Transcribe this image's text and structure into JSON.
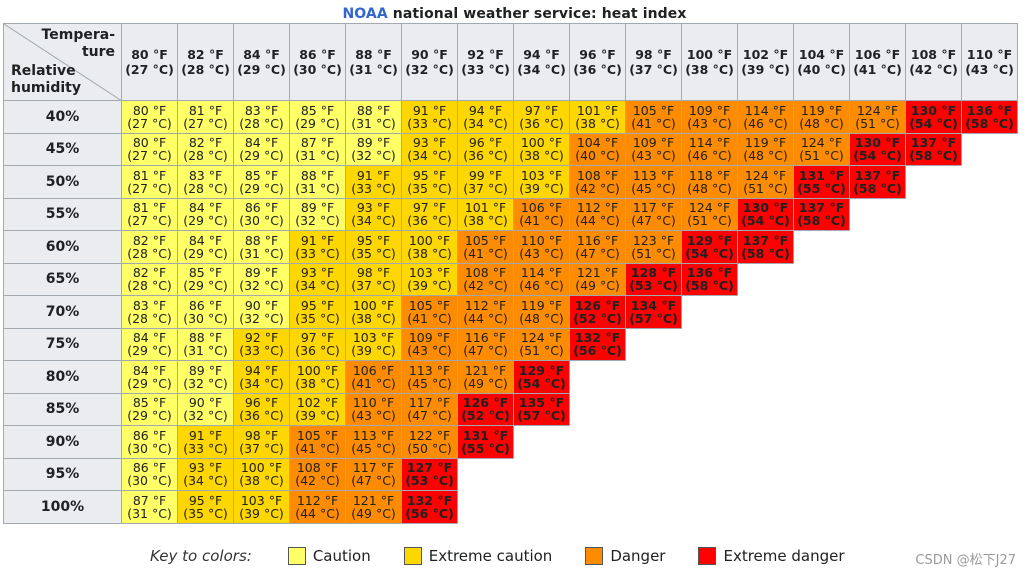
{
  "title": {
    "org": "NOAA",
    "rest": " national weather service: heat index"
  },
  "corner": {
    "temp_line1": "Tempera-",
    "temp_line2": "ture",
    "hum_line1": "Relative",
    "hum_line2": "humidity"
  },
  "colors": {
    "caution": "#ffff66",
    "extreme_caution": "#ffd700",
    "danger": "#ff8c00",
    "extreme_danger": "#ff0000",
    "header_bg": "#eaecf0",
    "org_blue": "#3366cc"
  },
  "columns": [
    [
      "80 °F",
      "(27 °C)"
    ],
    [
      "82 °F",
      "(28 °C)"
    ],
    [
      "84 °F",
      "(29 °C)"
    ],
    [
      "86 °F",
      "(30 °C)"
    ],
    [
      "88 °F",
      "(31 °C)"
    ],
    [
      "90 °F",
      "(32 °C)"
    ],
    [
      "92 °F",
      "(33 °C)"
    ],
    [
      "94 °F",
      "(34 °C)"
    ],
    [
      "96 °F",
      "(36 °C)"
    ],
    [
      "98 °F",
      "(37 °C)"
    ],
    [
      "100 °F",
      "(38 °C)"
    ],
    [
      "102 °F",
      "(39 °C)"
    ],
    [
      "104 °F",
      "(40 °C)"
    ],
    [
      "106 °F",
      "(41 °C)"
    ],
    [
      "108 °F",
      "(42 °C)"
    ],
    [
      "110 °F",
      "(43 °C)"
    ]
  ],
  "rows": [
    {
      "rh": "40%",
      "cells": [
        [
          "80 °F",
          "(27 °C)",
          0
        ],
        [
          "81 °F",
          "(27 °C)",
          0
        ],
        [
          "83 °F",
          "(28 °C)",
          0
        ],
        [
          "85 °F",
          "(29 °C)",
          0
        ],
        [
          "88 °F",
          "(31 °C)",
          0
        ],
        [
          "91 °F",
          "(33 °C)",
          1
        ],
        [
          "94 °F",
          "(34 °C)",
          1
        ],
        [
          "97 °F",
          "(36 °C)",
          1
        ],
        [
          "101 °F",
          "(38 °C)",
          1
        ],
        [
          "105 °F",
          "(41 °C)",
          2
        ],
        [
          "109 °F",
          "(43 °C)",
          2
        ],
        [
          "114 °F",
          "(46 °C)",
          2
        ],
        [
          "119 °F",
          "(48 °C)",
          2
        ],
        [
          "124 °F",
          "(51 °C)",
          2
        ],
        [
          "130 °F",
          "(54 °C)",
          3
        ],
        [
          "136 °F",
          "(58 °C)",
          3
        ]
      ]
    },
    {
      "rh": "45%",
      "cells": [
        [
          "80 °F",
          "(27 °C)",
          0
        ],
        [
          "82 °F",
          "(28 °C)",
          0
        ],
        [
          "84 °F",
          "(29 °C)",
          0
        ],
        [
          "87 °F",
          "(31 °C)",
          0
        ],
        [
          "89 °F",
          "(32 °C)",
          0
        ],
        [
          "93 °F",
          "(34 °C)",
          1
        ],
        [
          "96 °F",
          "(36 °C)",
          1
        ],
        [
          "100 °F",
          "(38 °C)",
          1
        ],
        [
          "104 °F",
          "(40 °C)",
          2
        ],
        [
          "109 °F",
          "(43 °C)",
          2
        ],
        [
          "114 °F",
          "(46 °C)",
          2
        ],
        [
          "119 °F",
          "(48 °C)",
          2
        ],
        [
          "124 °F",
          "(51 °C)",
          2
        ],
        [
          "130 °F",
          "(54 °C)",
          3
        ],
        [
          "137 °F",
          "(58 °C)",
          3
        ],
        [
          "",
          "",
          4
        ]
      ]
    },
    {
      "rh": "50%",
      "cells": [
        [
          "81 °F",
          "(27 °C)",
          0
        ],
        [
          "83 °F",
          "(28 °C)",
          0
        ],
        [
          "85 °F",
          "(29 °C)",
          0
        ],
        [
          "88 °F",
          "(31 °C)",
          0
        ],
        [
          "91 °F",
          "(33 °C)",
          1
        ],
        [
          "95 °F",
          "(35 °C)",
          1
        ],
        [
          "99 °F",
          "(37 °C)",
          1
        ],
        [
          "103 °F",
          "(39 °C)",
          1
        ],
        [
          "108 °F",
          "(42 °C)",
          2
        ],
        [
          "113 °F",
          "(45 °C)",
          2
        ],
        [
          "118 °F",
          "(48 °C)",
          2
        ],
        [
          "124 °F",
          "(51 °C)",
          2
        ],
        [
          "131 °F",
          "(55 °C)",
          3
        ],
        [
          "137 °F",
          "(58 °C)",
          3
        ],
        [
          "",
          "",
          4
        ]
      ]
    },
    {
      "rh": "55%",
      "cells": [
        [
          "81 °F",
          "(27 °C)",
          0
        ],
        [
          "84 °F",
          "(29 °C)",
          0
        ],
        [
          "86 °F",
          "(30 °C)",
          0
        ],
        [
          "89 °F",
          "(32 °C)",
          0
        ],
        [
          "93 °F",
          "(34 °C)",
          1
        ],
        [
          "97 °F",
          "(36 °C)",
          1
        ],
        [
          "101 °F",
          "(38 °C)",
          1
        ],
        [
          "106 °F",
          "(41 °C)",
          2
        ],
        [
          "112 °F",
          "(44 °C)",
          2
        ],
        [
          "117 °F",
          "(47 °C)",
          2
        ],
        [
          "124 °F",
          "(51 °C)",
          2
        ],
        [
          "130 °F",
          "(54 °C)",
          3
        ],
        [
          "137 °F",
          "(58 °C)",
          3
        ],
        [
          "",
          "",
          4
        ]
      ]
    },
    {
      "rh": "60%",
      "cells": [
        [
          "82 °F",
          "(28 °C)",
          0
        ],
        [
          "84 °F",
          "(29 °C)",
          0
        ],
        [
          "88 °F",
          "(31 °C)",
          0
        ],
        [
          "91 °F",
          "(33 °C)",
          1
        ],
        [
          "95 °F",
          "(35 °C)",
          1
        ],
        [
          "100 °F",
          "(38 °C)",
          1
        ],
        [
          "105 °F",
          "(41 °C)",
          2
        ],
        [
          "110 °F",
          "(43 °C)",
          2
        ],
        [
          "116 °F",
          "(47 °C)",
          2
        ],
        [
          "123 °F",
          "(51 °C)",
          2
        ],
        [
          "129 °F",
          "(54 °C)",
          3
        ],
        [
          "137 °F",
          "(58 °C)",
          3
        ],
        [
          "",
          "",
          4
        ]
      ]
    },
    {
      "rh": "65%",
      "cells": [
        [
          "82 °F",
          "(28 °C)",
          0
        ],
        [
          "85 °F",
          "(29 °C)",
          0
        ],
        [
          "89 °F",
          "(32 °C)",
          0
        ],
        [
          "93 °F",
          "(34 °C)",
          1
        ],
        [
          "98 °F",
          "(37 °C)",
          1
        ],
        [
          "103 °F",
          "(39 °C)",
          1
        ],
        [
          "108 °F",
          "(42 °C)",
          2
        ],
        [
          "114 °F",
          "(46 °C)",
          2
        ],
        [
          "121 °F",
          "(49 °C)",
          2
        ],
        [
          "128 °F",
          "(53 °C)",
          3
        ],
        [
          "136 °F",
          "(58 °C)",
          3
        ],
        [
          "",
          "",
          4
        ]
      ]
    },
    {
      "rh": "70%",
      "cells": [
        [
          "83 °F",
          "(28 °C)",
          0
        ],
        [
          "86 °F",
          "(30 °C)",
          0
        ],
        [
          "90 °F",
          "(32 °C)",
          0
        ],
        [
          "95 °F",
          "(35 °C)",
          1
        ],
        [
          "100 °F",
          "(38 °C)",
          1
        ],
        [
          "105 °F",
          "(41 °C)",
          2
        ],
        [
          "112 °F",
          "(44 °C)",
          2
        ],
        [
          "119 °F",
          "(48 °C)",
          2
        ],
        [
          "126 °F",
          "(52 °C)",
          3
        ],
        [
          "134 °F",
          "(57 °C)",
          3
        ],
        [
          "",
          "",
          4
        ]
      ]
    },
    {
      "rh": "75%",
      "cells": [
        [
          "84 °F",
          "(29 °C)",
          0
        ],
        [
          "88 °F",
          "(31 °C)",
          0
        ],
        [
          "92 °F",
          "(33 °C)",
          1
        ],
        [
          "97 °F",
          "(36 °C)",
          1
        ],
        [
          "103 °F",
          "(39 °C)",
          1
        ],
        [
          "109 °F",
          "(43 °C)",
          2
        ],
        [
          "116 °F",
          "(47 °C)",
          2
        ],
        [
          "124 °F",
          "(51 °C)",
          2
        ],
        [
          "132 °F",
          "(56 °C)",
          3
        ],
        [
          "",
          "",
          4
        ]
      ]
    },
    {
      "rh": "80%",
      "cells": [
        [
          "84 °F",
          "(29 °C)",
          0
        ],
        [
          "89 °F",
          "(32 °C)",
          0
        ],
        [
          "94 °F",
          "(34 °C)",
          1
        ],
        [
          "100 °F",
          "(38 °C)",
          1
        ],
        [
          "106 °F",
          "(41 °C)",
          2
        ],
        [
          "113 °F",
          "(45 °C)",
          2
        ],
        [
          "121 °F",
          "(49 °C)",
          2
        ],
        [
          "129 °F",
          "(54 °C)",
          3
        ],
        [
          "",
          "",
          4
        ]
      ]
    },
    {
      "rh": "85%",
      "cells": [
        [
          "85 °F",
          "(29 °C)",
          0
        ],
        [
          "90 °F",
          "(32 °C)",
          0
        ],
        [
          "96 °F",
          "(36 °C)",
          1
        ],
        [
          "102 °F",
          "(39 °C)",
          1
        ],
        [
          "110 °F",
          "(43 °C)",
          2
        ],
        [
          "117 °F",
          "(47 °C)",
          2
        ],
        [
          "126 °F",
          "(52 °C)",
          3
        ],
        [
          "135 °F",
          "(57 °C)",
          3
        ]
      ]
    },
    {
      "rh": "90%",
      "cells": [
        [
          "86 °F",
          "(30 °C)",
          0
        ],
        [
          "91 °F",
          "(33 °C)",
          1
        ],
        [
          "98 °F",
          "(37 °C)",
          1
        ],
        [
          "105 °F",
          "(41 °C)",
          2
        ],
        [
          "113 °F",
          "(45 °C)",
          2
        ],
        [
          "122 °F",
          "(50 °C)",
          2
        ],
        [
          "131 °F",
          "(55 °C)",
          3
        ],
        [
          "",
          "",
          4
        ]
      ]
    },
    {
      "rh": "95%",
      "cells": [
        [
          "86 °F",
          "(30 °C)",
          0
        ],
        [
          "93 °F",
          "(34 °C)",
          1
        ],
        [
          "100 °F",
          "(38 °C)",
          1
        ],
        [
          "108 °F",
          "(42 °C)",
          2
        ],
        [
          "117 °F",
          "(47 °C)",
          2
        ],
        [
          "127 °F",
          "(53 °C)",
          3
        ],
        [
          "",
          "",
          4
        ]
      ]
    },
    {
      "rh": "100%",
      "cells": [
        [
          "87 °F",
          "(31 °C)",
          0
        ],
        [
          "95 °F",
          "(35 °C)",
          1
        ],
        [
          "103 °F",
          "(39 °C)",
          1
        ],
        [
          "112 °F",
          "(44 °C)",
          2
        ],
        [
          "121 °F",
          "(49 °C)",
          2
        ],
        [
          "132 °F",
          "(56 °C)",
          3
        ]
      ]
    }
  ],
  "legend": {
    "title": "Key to colors:",
    "items": [
      {
        "label": "Caution",
        "color": "#ffff66"
      },
      {
        "label": "Extreme caution",
        "color": "#ffd700"
      },
      {
        "label": "Danger",
        "color": "#ff8c00"
      },
      {
        "label": "Extreme danger",
        "color": "#ff0000"
      }
    ]
  },
  "watermark": "CSDN @松下J27"
}
